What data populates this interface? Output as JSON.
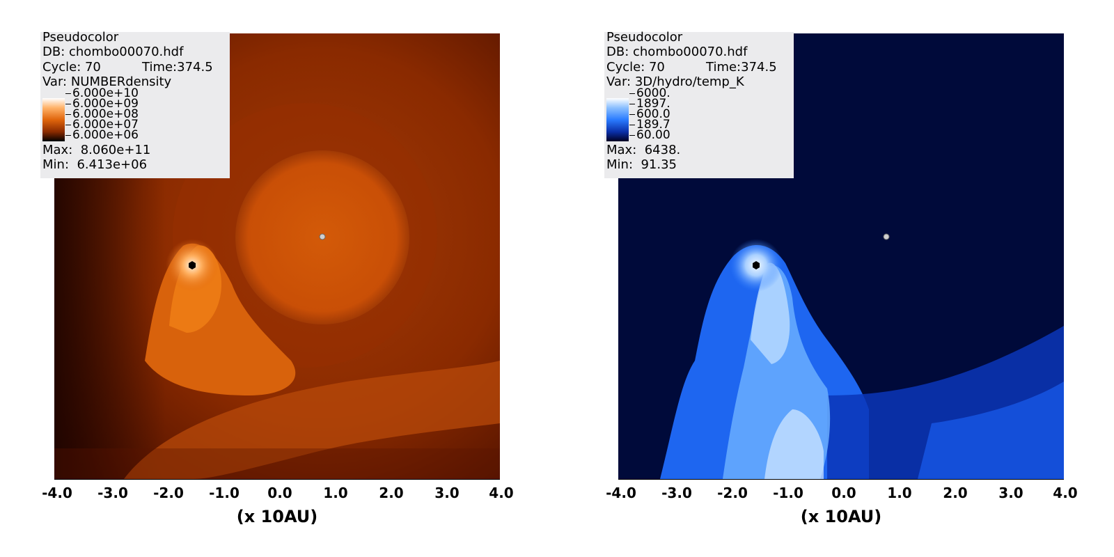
{
  "panels": [
    {
      "plot_type": "Pseudocolor",
      "db": "DB: chombo00070.hdf",
      "cycle": "Cycle: 70",
      "time": "Time:374.5",
      "var": "Var: NUMBERdensity",
      "legend_ticks": [
        "6.000e+10",
        "6.000e+09",
        "6.000e+08",
        "6.000e+07",
        "6.000e+06"
      ],
      "max": "Max:  8.060e+11",
      "min": "Min:  6.413e+06",
      "colormap": "orangehot",
      "colors": {
        "background": "#8a2a00",
        "bright": "#ff8a1a",
        "white": "#fff4e6",
        "dark": "#2a0500"
      }
    },
    {
      "plot_type": "Pseudocolor",
      "db": "DB: chombo00070.hdf",
      "cycle": "Cycle: 70",
      "time": "Time:374.5",
      "var": "Var: 3D/hydro/temp_K",
      "legend_ticks": [
        "6000.",
        "1897.",
        "600.0",
        "189.7",
        "60.00"
      ],
      "max": "Max:  6438.",
      "min": "Min:  91.35",
      "colormap": "blue",
      "colors": {
        "background": "#000a3a",
        "bright": "#2a7bff",
        "white": "#e8f2ff",
        "dark": "#000433"
      }
    }
  ],
  "x_ticks": [
    "-4.0",
    "-3.0",
    "-2.0",
    "-1.0",
    "0.0",
    "1.0",
    "2.0",
    "3.0",
    "4.0"
  ],
  "x_label": "(x 10AU)"
}
